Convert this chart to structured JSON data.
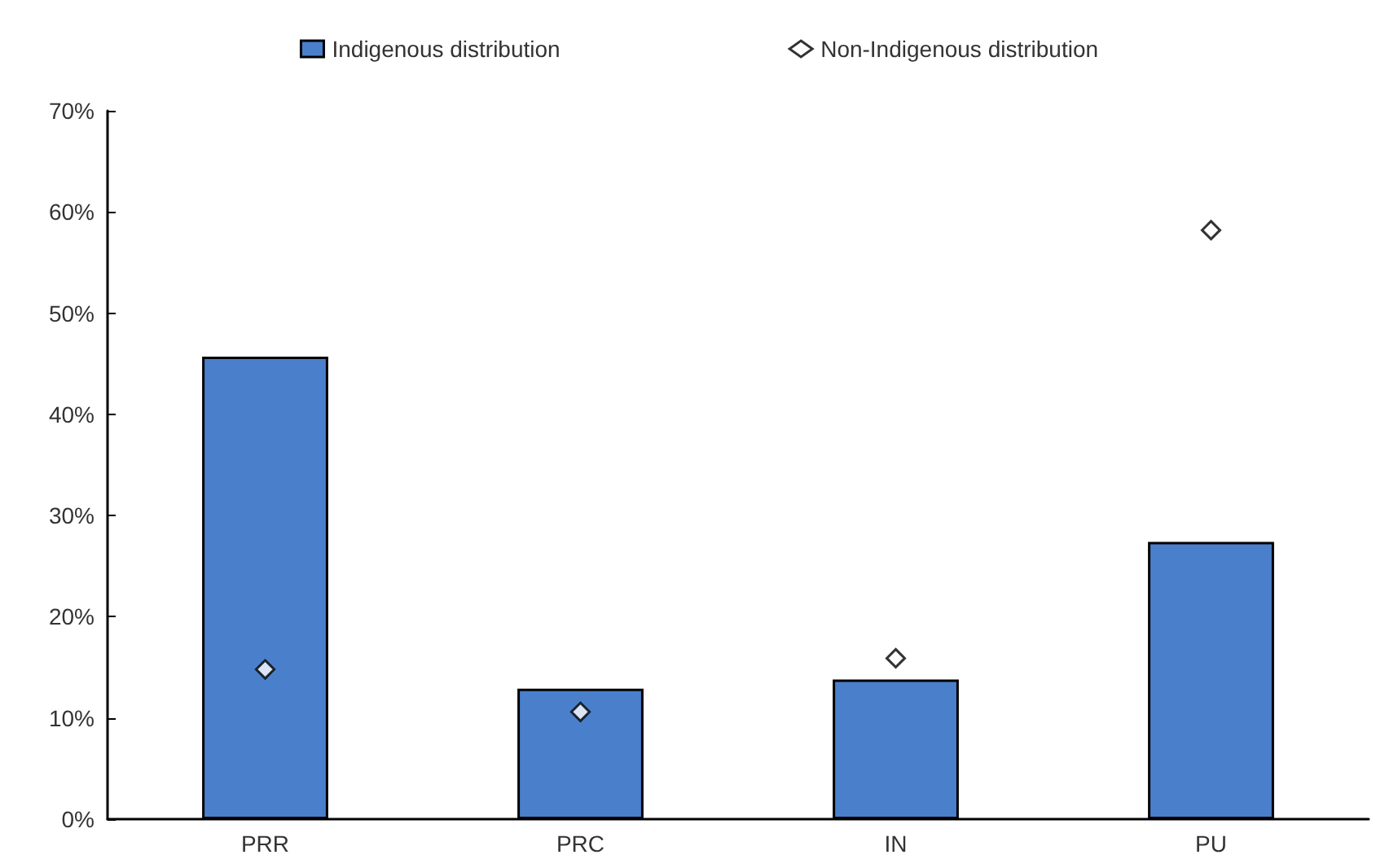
{
  "chart_data": {
    "type": "bar",
    "categories": [
      "PRR",
      "PRC",
      "IN",
      "PU"
    ],
    "series": [
      {
        "name": "Indigenous distribution",
        "type": "bar",
        "color": "#4a7fcc",
        "values": [
          45.7,
          12.9,
          13.8,
          27.4
        ]
      },
      {
        "name": "Non-Indigenous distribution",
        "type": "scatter",
        "color": "#ffffff",
        "marker": "diamond",
        "x": [
          "PRR",
          "PRC",
          "IN",
          "PU"
        ],
        "values": [
          14.8,
          10.6,
          15.9,
          58.2
        ]
      }
    ],
    "ylim": [
      0,
      70
    ],
    "yticks": [
      {
        "value": 0,
        "label": "0%"
      },
      {
        "value": 10,
        "label": "10%"
      },
      {
        "value": 20,
        "label": "20%"
      },
      {
        "value": 30,
        "label": "30%"
      },
      {
        "value": 40,
        "label": "40%"
      },
      {
        "value": 50,
        "label": "50%"
      },
      {
        "value": 60,
        "label": "60%"
      },
      {
        "value": 70,
        "label": "70%"
      }
    ],
    "grid": false,
    "legend": "top"
  }
}
